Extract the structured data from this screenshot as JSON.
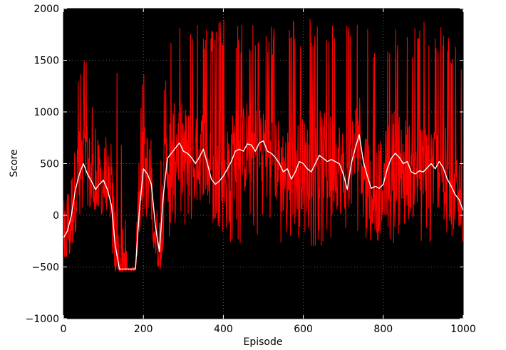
{
  "chart_data": {
    "type": "line",
    "title": "",
    "xlabel": "Episode",
    "ylabel": "Score",
    "xlim": [
      0,
      1000
    ],
    "ylim": [
      -1000,
      2000
    ],
    "xticks": [
      0,
      200,
      400,
      600,
      800,
      1000
    ],
    "yticks": [
      -1000,
      -500,
      0,
      500,
      1000,
      1500,
      2000
    ],
    "xtick_labels": [
      "0",
      "200",
      "400",
      "600",
      "800",
      "1000"
    ],
    "ytick_labels": [
      "−1000",
      "−500",
      "0",
      "500",
      "1000",
      "1500",
      "2000"
    ],
    "grid": true,
    "background_color": "#000000",
    "series": [
      {
        "style": "raw",
        "color": "#ff0000",
        "envelope": {
          "x": [
            0,
            10,
            30,
            45,
            60,
            80,
            100,
            115,
            125,
            130,
            140,
            160,
            180,
            195,
            205,
            215,
            225,
            235,
            245,
            255,
            265,
            280,
            300,
            350,
            400,
            450,
            500,
            550,
            600,
            650,
            700,
            750,
            800,
            850,
            900,
            950,
            1000
          ],
          "low": [
            -500,
            -480,
            -150,
            -100,
            100,
            50,
            0,
            100,
            -510,
            -540,
            -540,
            -540,
            -540,
            -100,
            0,
            -50,
            -300,
            -480,
            -530,
            -530,
            -400,
            -100,
            -200,
            -200,
            -250,
            -300,
            -300,
            -300,
            -300,
            -300,
            -200,
            -250,
            -300,
            -300,
            -350,
            -300,
            -250
          ],
          "high": [
            200,
            250,
            1300,
            1550,
            1550,
            850,
            800,
            800,
            750,
            1550,
            1350,
            -500,
            -500,
            1200,
            1550,
            1200,
            700,
            50,
            650,
            1500,
            1900,
            1850,
            1950,
            1850,
            1900,
            1850,
            1850,
            1850,
            1950,
            1850,
            1950,
            1800,
            1800,
            1800,
            1900,
            1850,
            1550
          ]
        }
      },
      {
        "style": "moving-average",
        "color": "#ffffff",
        "x": [
          0,
          10,
          20,
          30,
          40,
          50,
          60,
          70,
          80,
          90,
          100,
          110,
          120,
          130,
          140,
          150,
          160,
          170,
          180,
          190,
          200,
          210,
          220,
          230,
          240,
          250,
          260,
          270,
          280,
          290,
          300,
          310,
          320,
          330,
          340,
          350,
          360,
          370,
          380,
          390,
          400,
          410,
          420,
          430,
          440,
          450,
          460,
          470,
          480,
          490,
          500,
          510,
          520,
          530,
          540,
          550,
          560,
          570,
          580,
          590,
          600,
          610,
          620,
          630,
          640,
          650,
          660,
          670,
          680,
          690,
          700,
          710,
          720,
          730,
          740,
          750,
          760,
          770,
          780,
          790,
          800,
          810,
          820,
          830,
          840,
          850,
          860,
          870,
          880,
          890,
          900,
          910,
          920,
          930,
          940,
          950,
          960,
          970,
          980,
          990,
          1000
        ],
        "y": [
          -220,
          -150,
          0,
          250,
          400,
          500,
          400,
          330,
          250,
          300,
          340,
          250,
          100,
          -300,
          -520,
          -520,
          -520,
          -520,
          -520,
          50,
          450,
          400,
          300,
          -100,
          -350,
          200,
          550,
          600,
          650,
          700,
          620,
          600,
          560,
          500,
          560,
          640,
          500,
          350,
          300,
          330,
          380,
          450,
          520,
          620,
          640,
          620,
          690,
          680,
          620,
          700,
          720,
          620,
          600,
          560,
          500,
          420,
          450,
          350,
          420,
          520,
          500,
          450,
          420,
          500,
          580,
          550,
          520,
          540,
          520,
          500,
          400,
          250,
          500,
          650,
          780,
          520,
          380,
          260,
          280,
          260,
          300,
          450,
          550,
          600,
          560,
          500,
          520,
          420,
          400,
          430,
          420,
          460,
          500,
          450,
          520,
          460,
          350,
          280,
          200,
          150,
          40
        ]
      }
    ]
  }
}
